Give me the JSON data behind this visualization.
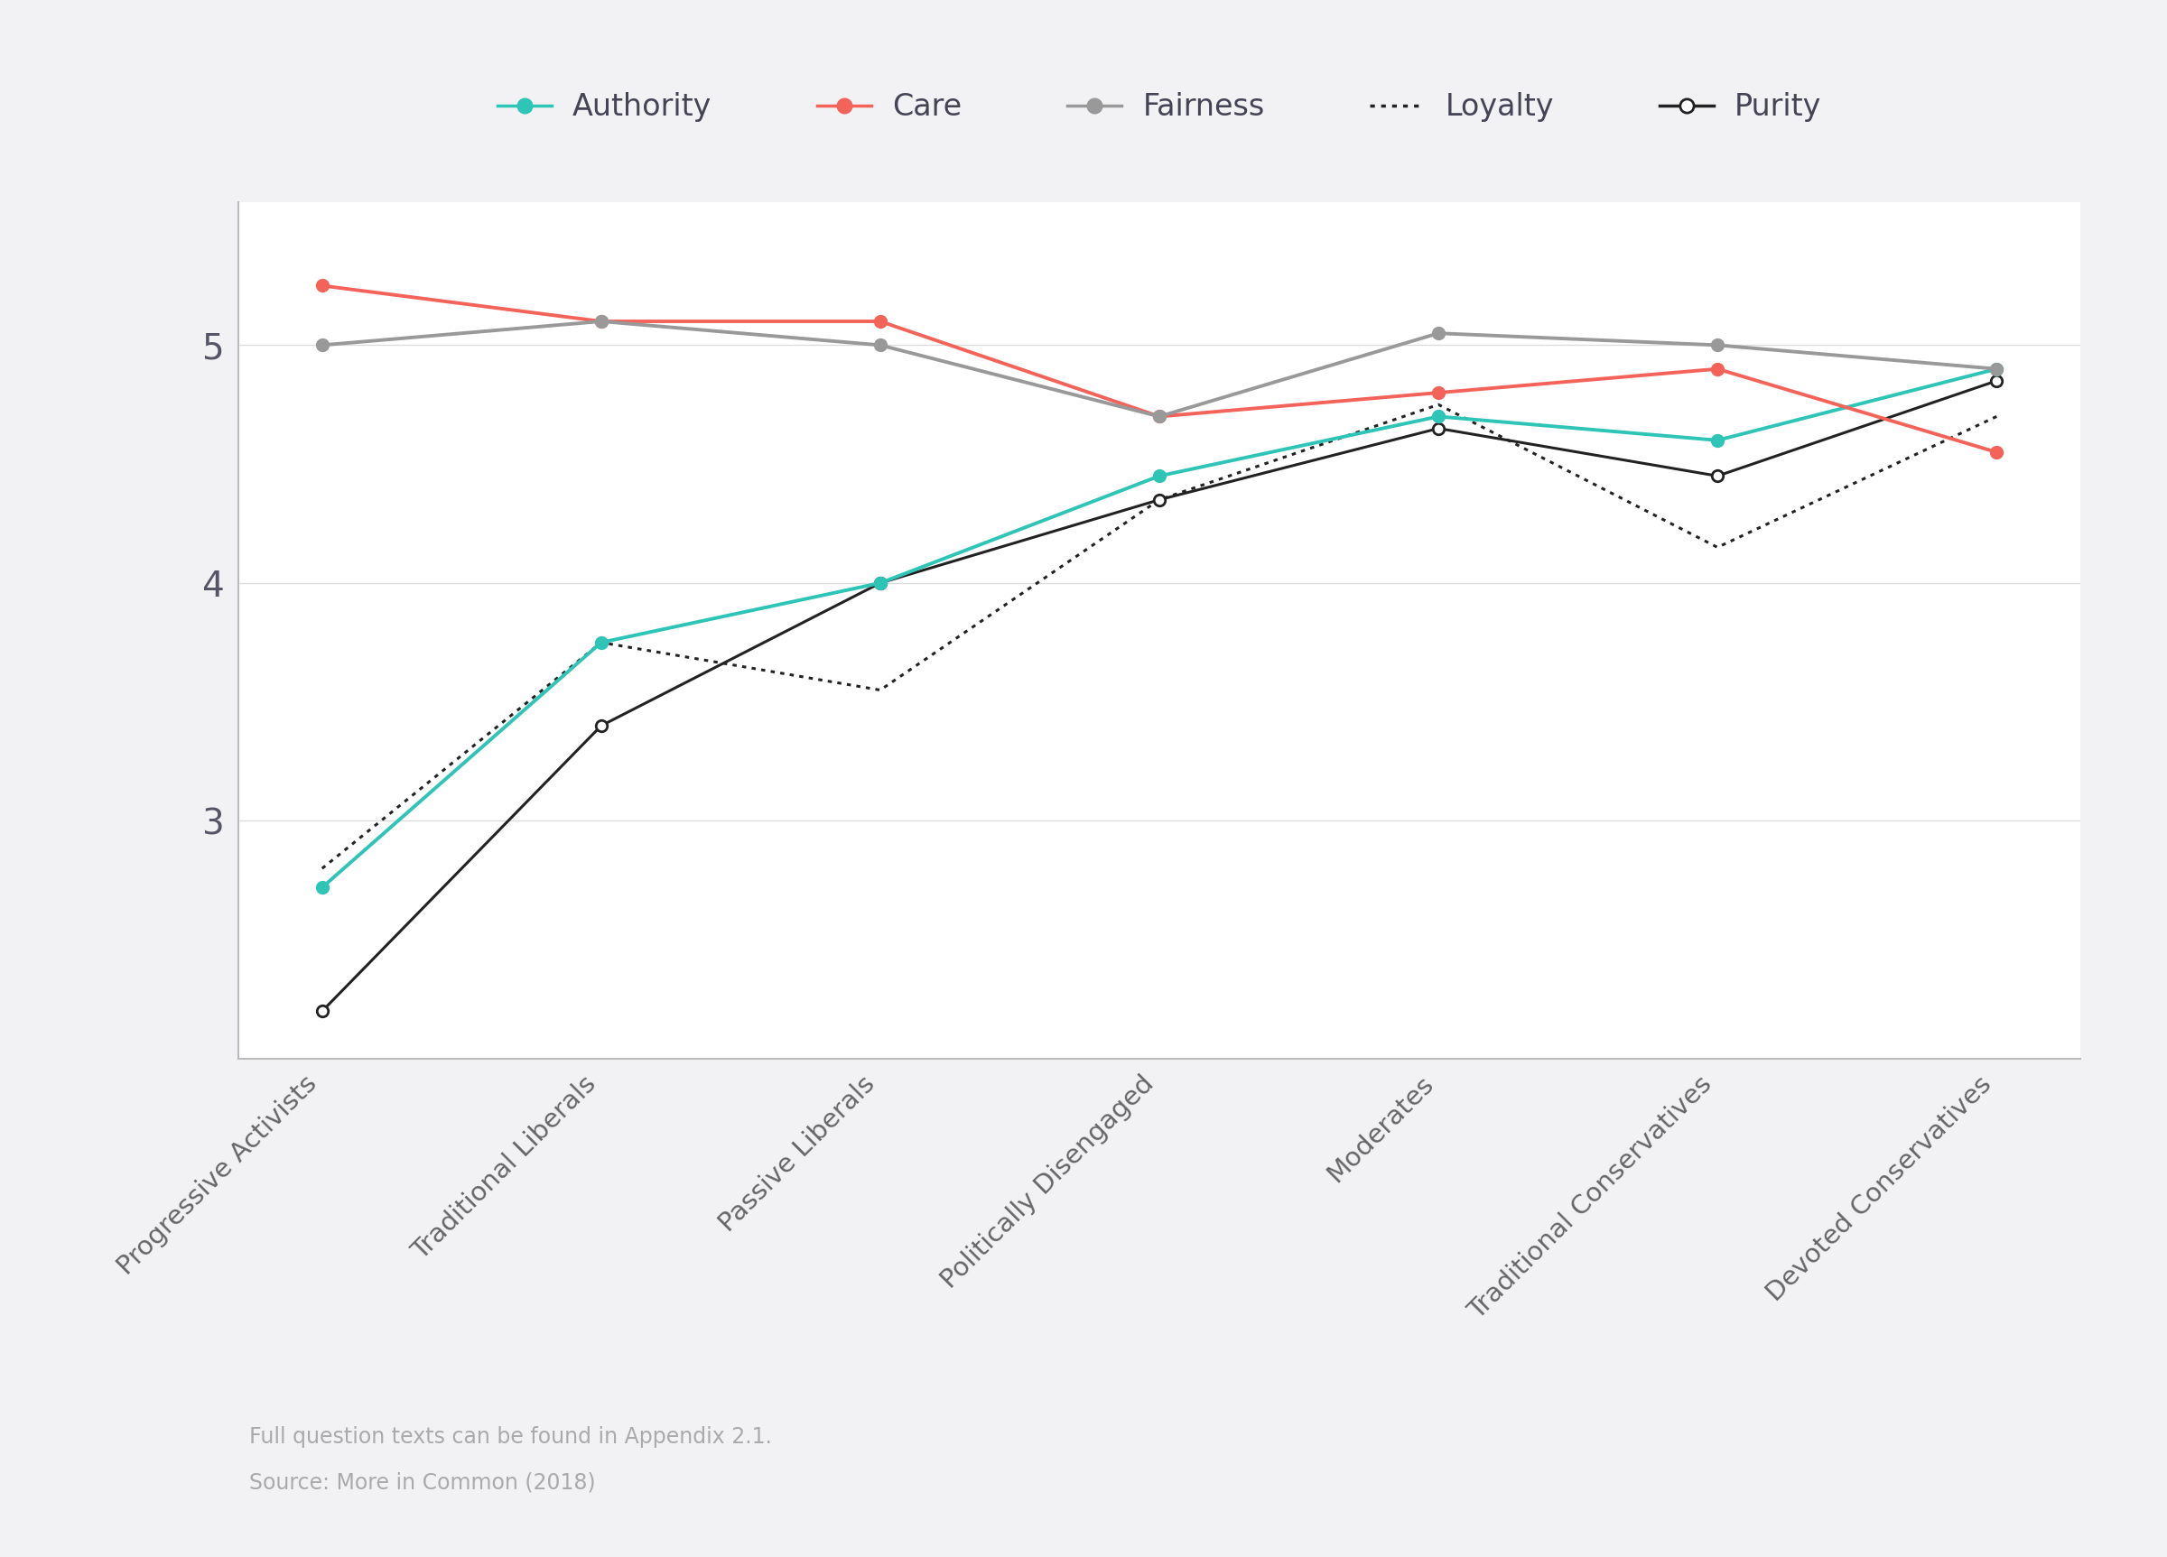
{
  "categories": [
    "Progressive Activists",
    "Traditional Liberals",
    "Passive Liberals",
    "Politically Disengaged",
    "Moderates",
    "Traditional Conservatives",
    "Devoted Conservatives"
  ],
  "series": {
    "Authority": {
      "values": [
        2.72,
        3.75,
        4.0,
        4.45,
        4.7,
        4.6,
        4.9
      ],
      "color": "#2ec4b6",
      "linestyle": "solid",
      "filled": true,
      "linewidth": 2.8,
      "markersize": 9
    },
    "Care": {
      "values": [
        5.25,
        5.1,
        5.1,
        4.7,
        4.8,
        4.9,
        4.55
      ],
      "color": "#f4635a",
      "linestyle": "solid",
      "filled": true,
      "linewidth": 2.8,
      "markersize": 9
    },
    "Fairness": {
      "values": [
        5.0,
        5.1,
        5.0,
        4.7,
        5.05,
        5.0,
        4.9
      ],
      "color": "#999999",
      "linestyle": "solid",
      "filled": true,
      "linewidth": 2.8,
      "markersize": 9
    },
    "Loyalty": {
      "values": [
        2.8,
        3.75,
        3.55,
        4.35,
        4.75,
        4.15,
        4.7
      ],
      "color": "#222222",
      "linestyle": "dotted",
      "filled": true,
      "linewidth": 2.2,
      "markersize": 0
    },
    "Purity": {
      "values": [
        2.2,
        3.4,
        4.0,
        4.35,
        4.65,
        4.45,
        4.85
      ],
      "color": "#222222",
      "linestyle": "solid",
      "filled": false,
      "linewidth": 2.2,
      "markersize": 9
    }
  },
  "ylim": [
    2.0,
    5.6
  ],
  "yticks": [
    3,
    4,
    5
  ],
  "background_color": "#f2f2f4",
  "plot_background_color": "#ffffff",
  "legend_order": [
    "Authority",
    "Care",
    "Fairness",
    "Loyalty",
    "Purity"
  ],
  "footnote_line1": "Full question texts can be found in Appendix 2.1.",
  "footnote_line2": "Source: More in Common (2018)",
  "footnote_color": "#aaaaaa",
  "axis_color": "#bbbbbb",
  "tick_label_color": "#555566",
  "xtick_color": "#666666"
}
